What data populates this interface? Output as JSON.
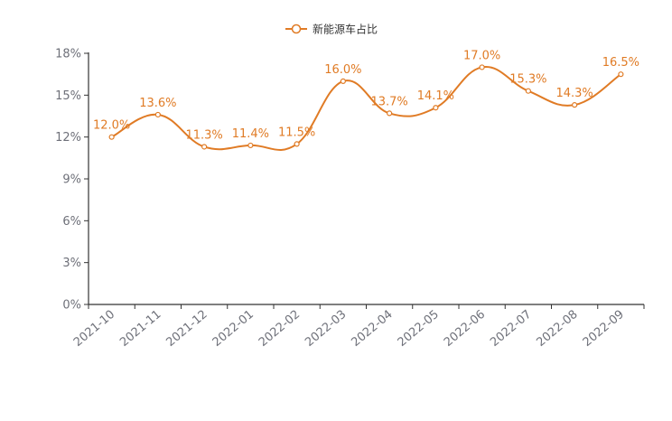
{
  "chart_data": {
    "type": "line",
    "title": "",
    "xlabel": "",
    "ylabel": "",
    "categories": [
      "2021-10",
      "2021-11",
      "2021-12",
      "2022-01",
      "2022-02",
      "2022-03",
      "2022-04",
      "2022-05",
      "2022-06",
      "2022-07",
      "2022-08",
      "2022-09"
    ],
    "series": [
      {
        "name": "新能源车占比",
        "values": [
          12.0,
          13.6,
          11.3,
          11.4,
          11.5,
          16.0,
          13.7,
          14.1,
          17.0,
          15.3,
          14.3,
          16.5
        ],
        "labels": [
          "12.0%",
          "13.6%",
          "11.3%",
          "11.4%",
          "11.5%",
          "16.0%",
          "13.7%",
          "14.1%",
          "17.0%",
          "15.3%",
          "14.3%",
          "16.5%"
        ]
      }
    ],
    "y_ticks": [
      "0%",
      "3%",
      "6%",
      "9%",
      "12%",
      "15%",
      "18%"
    ],
    "ylim": [
      0,
      18
    ],
    "smooth": true,
    "grid": false,
    "legend_position": "top-center",
    "colors": {
      "series": "#e07b25",
      "axis": "#333333",
      "tick_text": "#6e7079"
    }
  }
}
